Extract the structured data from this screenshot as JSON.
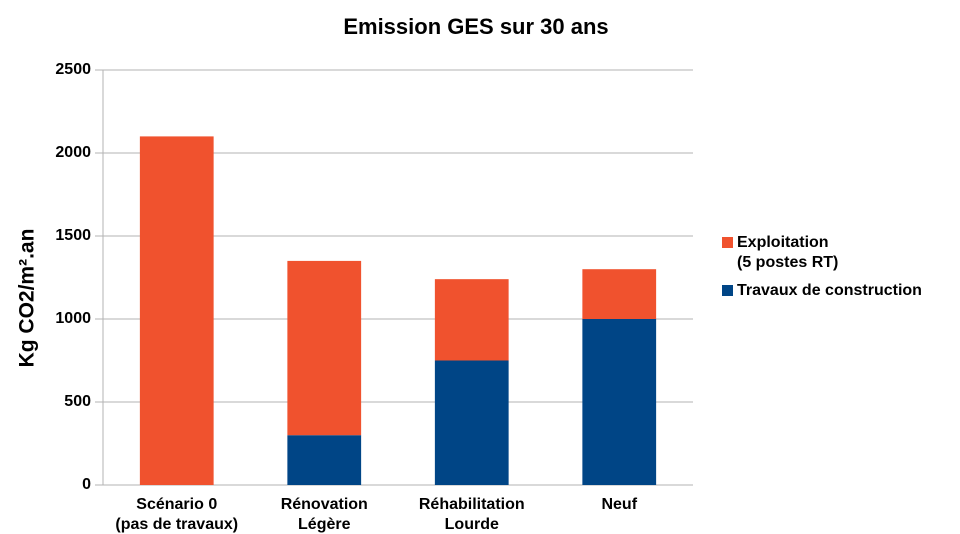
{
  "chart_data": {
    "type": "stacked_bar",
    "title": "Emission GES sur 30 ans",
    "y_label": "Kg CO2/m².an",
    "categories": [
      "Scénario 0\n(pas de travaux)",
      "Rénovation\nLégère",
      "Réhabilitation\nLourde",
      "Neuf"
    ],
    "series": [
      {
        "name": "Travaux de construction",
        "color": "#004586",
        "values": [
          0,
          300,
          750,
          1000
        ]
      },
      {
        "name": "Exploitation\n(5 postes RT)",
        "color": "#f0522e",
        "values": [
          2100,
          1050,
          490,
          300
        ]
      }
    ],
    "ylim": [
      0,
      2500
    ],
    "yticks": [
      0,
      500,
      1000,
      1500,
      2000,
      2500
    ],
    "grid": true,
    "legend": "right"
  }
}
